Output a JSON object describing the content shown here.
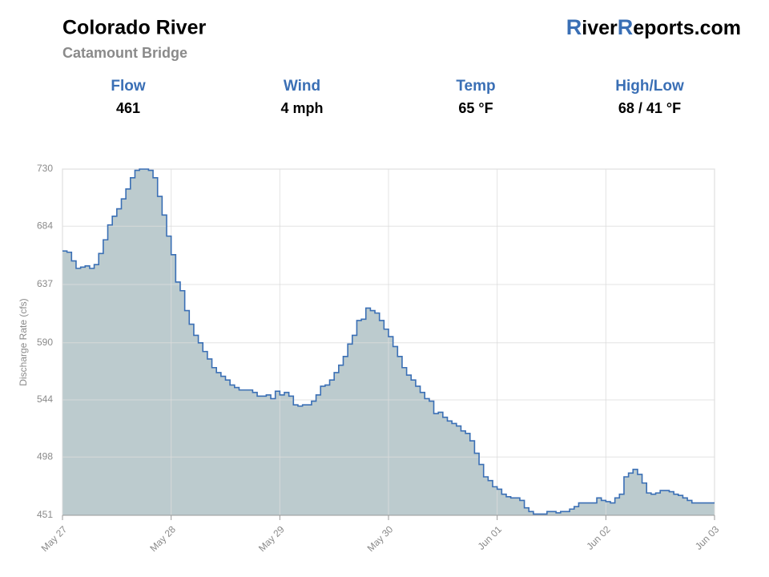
{
  "header": {
    "title": "Colorado River",
    "subtitle": "Catamount Bridge",
    "brand": [
      "R",
      "iver",
      "R",
      "eports.com"
    ]
  },
  "stats": [
    {
      "label": "Flow",
      "value": "461"
    },
    {
      "label": "Wind",
      "value": "4 mph"
    },
    {
      "label": "Temp",
      "value": "65 °F"
    },
    {
      "label": "High/Low",
      "value": "68 / 41 °F"
    }
  ],
  "chart_data": {
    "type": "step-area",
    "y_label": "Discharge Rate (cfs)",
    "color": "#3a6fb5",
    "fill": "#bccbce",
    "grid": true,
    "xlim": [
      0,
      144
    ],
    "ylim": [
      451,
      730
    ],
    "xticks": [
      {
        "value": 0,
        "label": "May 27"
      },
      {
        "value": 24,
        "label": "May 28"
      },
      {
        "value": 48,
        "label": "May 29"
      },
      {
        "value": 72,
        "label": "May 30"
      },
      {
        "value": 96,
        "label": "Jun 01"
      },
      {
        "value": 120,
        "label": "Jun 02"
      },
      {
        "value": 144,
        "label": "Jun 03"
      }
    ],
    "yticks": [
      451,
      498,
      544,
      590,
      637,
      684,
      730
    ],
    "x": [
      0,
      1,
      2,
      3,
      4,
      5,
      6,
      7,
      8,
      9,
      10,
      11,
      12,
      13,
      14,
      15,
      16,
      17,
      18,
      19,
      20,
      21,
      22,
      23,
      24,
      25,
      26,
      27,
      28,
      29,
      30,
      31,
      32,
      33,
      34,
      35,
      36,
      37,
      38,
      39,
      40,
      41,
      42,
      43,
      44,
      45,
      46,
      47,
      48,
      49,
      50,
      51,
      52,
      53,
      54,
      55,
      56,
      57,
      58,
      59,
      60,
      61,
      62,
      63,
      64,
      65,
      66,
      67,
      68,
      69,
      70,
      71,
      72,
      73,
      74,
      75,
      76,
      77,
      78,
      79,
      80,
      81,
      82,
      83,
      84,
      85,
      86,
      87,
      88,
      89,
      90,
      91,
      92,
      93,
      94,
      95,
      96,
      97,
      98,
      99,
      100,
      101,
      102,
      103,
      104,
      105,
      106,
      107,
      108,
      109,
      110,
      111,
      112,
      113,
      114,
      115,
      116,
      117,
      118,
      119,
      120,
      121,
      122,
      123,
      124,
      125,
      126,
      127,
      128,
      129,
      130,
      131,
      132,
      133,
      134,
      135,
      136,
      137,
      138,
      139,
      140,
      141,
      142,
      143,
      144
    ],
    "values": [
      664,
      663,
      656,
      650,
      651,
      652,
      650,
      653,
      662,
      673,
      685,
      692,
      698,
      706,
      714,
      723,
      729,
      730,
      730,
      729,
      723,
      708,
      693,
      676,
      661,
      639,
      632,
      616,
      605,
      596,
      590,
      583,
      577,
      570,
      566,
      563,
      560,
      556,
      554,
      552,
      552,
      552,
      550,
      547,
      547,
      548,
      545,
      551,
      548,
      550,
      547,
      540,
      539,
      540,
      540,
      543,
      548,
      555,
      556,
      560,
      566,
      572,
      579,
      589,
      596,
      608,
      609,
      618,
      616,
      614,
      608,
      601,
      595,
      587,
      579,
      570,
      564,
      560,
      555,
      550,
      545,
      543,
      533,
      534,
      530,
      527,
      525,
      523,
      519,
      517,
      511,
      501,
      492,
      482,
      479,
      474,
      472,
      468,
      466,
      465,
      465,
      463,
      457,
      454,
      452,
      452,
      452,
      454,
      454,
      453,
      454,
      454,
      456,
      458,
      461,
      461,
      461,
      461,
      465,
      463,
      462,
      461,
      465,
      468,
      482,
      485,
      488,
      484,
      477,
      469,
      468,
      469,
      471,
      471,
      470,
      468,
      467,
      465,
      463,
      461,
      461,
      461,
      461,
      461,
      461
    ]
  }
}
